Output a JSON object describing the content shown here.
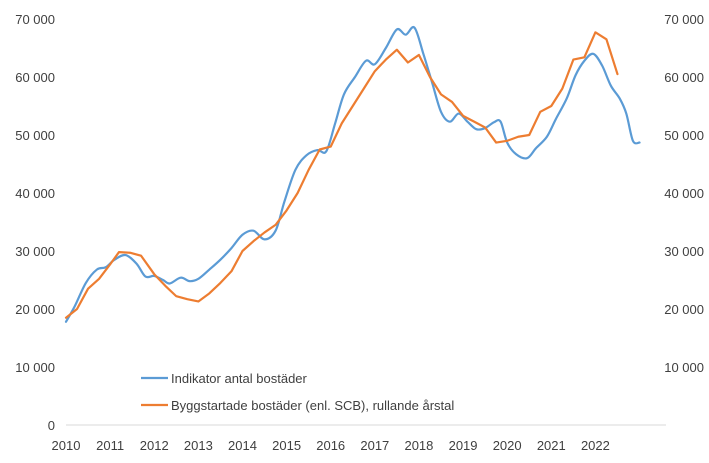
{
  "chart_data": {
    "type": "line",
    "title": "",
    "xlabel": "",
    "ylabel": "",
    "x_ticks": [
      "2010",
      "2011",
      "2012",
      "2013",
      "2014",
      "2015",
      "2016",
      "2017",
      "2018",
      "2019",
      "2020",
      "2021",
      "2022"
    ],
    "xlim": [
      2010,
      2023.6
    ],
    "ylim": [
      0,
      70000
    ],
    "y_ticks": [
      "0",
      "10 000",
      "20 000",
      "30 000",
      "40 000",
      "50 000",
      "60 000",
      "70 000"
    ],
    "y_ticks_right": [
      "10 000",
      "20 000",
      "30 000",
      "40 000",
      "50 000",
      "60 000",
      "70 000"
    ],
    "legend_position": "bottom-left",
    "grid": false,
    "series": [
      {
        "name": "Indikator antal bostäder",
        "color": "#5B9BD5",
        "points": [
          [
            2010.0,
            17800
          ],
          [
            2010.2,
            20500
          ],
          [
            2010.45,
            24500
          ],
          [
            2010.7,
            26800
          ],
          [
            2010.9,
            27200
          ],
          [
            2011.1,
            28500
          ],
          [
            2011.35,
            29300
          ],
          [
            2011.6,
            27800
          ],
          [
            2011.8,
            25600
          ],
          [
            2012.0,
            25700
          ],
          [
            2012.2,
            25000
          ],
          [
            2012.35,
            24400
          ],
          [
            2012.6,
            25400
          ],
          [
            2012.8,
            24800
          ],
          [
            2013.0,
            25200
          ],
          [
            2013.25,
            26800
          ],
          [
            2013.5,
            28500
          ],
          [
            2013.75,
            30500
          ],
          [
            2014.0,
            32800
          ],
          [
            2014.25,
            33500
          ],
          [
            2014.5,
            32000
          ],
          [
            2014.75,
            33500
          ],
          [
            2014.95,
            38500
          ],
          [
            2015.2,
            44000
          ],
          [
            2015.45,
            46500
          ],
          [
            2015.7,
            47400
          ],
          [
            2015.9,
            47200
          ],
          [
            2016.1,
            52000
          ],
          [
            2016.3,
            57000
          ],
          [
            2016.55,
            60000
          ],
          [
            2016.8,
            62800
          ],
          [
            2017.0,
            62200
          ],
          [
            2017.25,
            65000
          ],
          [
            2017.5,
            68200
          ],
          [
            2017.7,
            67300
          ],
          [
            2017.9,
            68500
          ],
          [
            2018.1,
            64000
          ],
          [
            2018.3,
            59000
          ],
          [
            2018.5,
            54000
          ],
          [
            2018.7,
            52300
          ],
          [
            2018.9,
            53700
          ],
          [
            2019.1,
            52300
          ],
          [
            2019.3,
            51000
          ],
          [
            2019.5,
            51200
          ],
          [
            2019.7,
            52200
          ],
          [
            2019.85,
            52300
          ],
          [
            2020.0,
            48700
          ],
          [
            2020.2,
            46700
          ],
          [
            2020.45,
            46000
          ],
          [
            2020.65,
            47700
          ],
          [
            2020.9,
            49700
          ],
          [
            2021.1,
            52700
          ],
          [
            2021.35,
            56300
          ],
          [
            2021.55,
            60300
          ],
          [
            2021.75,
            62800
          ],
          [
            2021.95,
            64000
          ],
          [
            2022.15,
            62000
          ],
          [
            2022.35,
            58500
          ],
          [
            2022.55,
            56300
          ],
          [
            2022.7,
            53700
          ],
          [
            2022.85,
            49000
          ],
          [
            2023.0,
            48700
          ]
        ]
      },
      {
        "name": "Byggstartade bostäder (enl. SCB), rullande årstal",
        "color": "#ED7D31",
        "points": [
          [
            2010.0,
            18500
          ],
          [
            2010.25,
            20000
          ],
          [
            2010.5,
            23500
          ],
          [
            2010.75,
            25200
          ],
          [
            2011.0,
            27700
          ],
          [
            2011.2,
            29800
          ],
          [
            2011.45,
            29700
          ],
          [
            2011.7,
            29200
          ],
          [
            2012.0,
            26000
          ],
          [
            2012.25,
            24000
          ],
          [
            2012.5,
            22200
          ],
          [
            2012.75,
            21700
          ],
          [
            2013.0,
            21300
          ],
          [
            2013.25,
            22700
          ],
          [
            2013.5,
            24500
          ],
          [
            2013.75,
            26500
          ],
          [
            2014.0,
            30000
          ],
          [
            2014.25,
            31700
          ],
          [
            2014.5,
            33200
          ],
          [
            2014.75,
            34500
          ],
          [
            2015.0,
            37000
          ],
          [
            2015.25,
            40000
          ],
          [
            2015.5,
            44000
          ],
          [
            2015.75,
            47500
          ],
          [
            2016.0,
            48000
          ],
          [
            2016.25,
            52000
          ],
          [
            2016.5,
            55000
          ],
          [
            2016.75,
            58000
          ],
          [
            2017.0,
            61000
          ],
          [
            2017.25,
            63000
          ],
          [
            2017.5,
            64700
          ],
          [
            2017.75,
            62500
          ],
          [
            2018.0,
            63800
          ],
          [
            2018.25,
            60000
          ],
          [
            2018.5,
            57000
          ],
          [
            2018.75,
            55700
          ],
          [
            2019.0,
            53300
          ],
          [
            2019.25,
            52300
          ],
          [
            2019.5,
            51300
          ],
          [
            2019.75,
            48700
          ],
          [
            2020.0,
            49000
          ],
          [
            2020.25,
            49700
          ],
          [
            2020.5,
            50000
          ],
          [
            2020.75,
            54000
          ],
          [
            2021.0,
            55000
          ],
          [
            2021.25,
            58000
          ],
          [
            2021.5,
            63000
          ],
          [
            2021.75,
            63400
          ],
          [
            2022.0,
            67700
          ],
          [
            2022.25,
            66500
          ],
          [
            2022.5,
            60500
          ]
        ]
      }
    ]
  }
}
